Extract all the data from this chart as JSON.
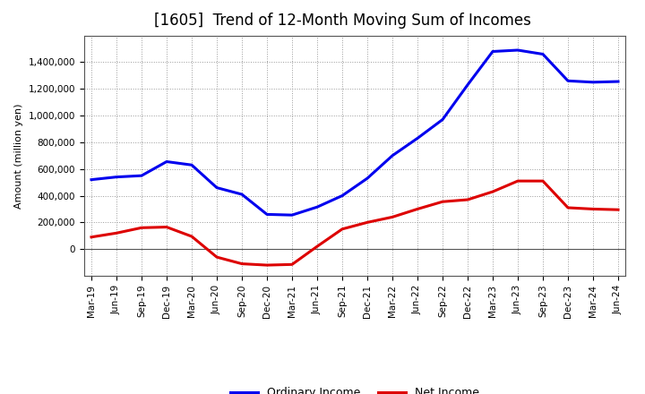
{
  "title": "[1605]  Trend of 12-Month Moving Sum of Incomes",
  "ylabel": "Amount (million yen)",
  "xlabels": [
    "Mar-19",
    "Jun-19",
    "Sep-19",
    "Dec-19",
    "Mar-20",
    "Jun-20",
    "Sep-20",
    "Dec-20",
    "Mar-21",
    "Jun-21",
    "Sep-21",
    "Dec-21",
    "Mar-22",
    "Jun-22",
    "Sep-22",
    "Dec-22",
    "Mar-23",
    "Jun-23",
    "Sep-23",
    "Dec-23",
    "Mar-24",
    "Jun-24"
  ],
  "ordinary_income": [
    520000,
    540000,
    550000,
    655000,
    630000,
    460000,
    410000,
    260000,
    255000,
    315000,
    400000,
    530000,
    700000,
    830000,
    970000,
    1230000,
    1480000,
    1490000,
    1460000,
    1260000,
    1250000,
    1255000
  ],
  "net_income": [
    90000,
    120000,
    160000,
    165000,
    95000,
    -60000,
    -110000,
    -120000,
    -115000,
    20000,
    150000,
    200000,
    240000,
    300000,
    355000,
    370000,
    430000,
    510000,
    510000,
    310000,
    300000,
    295000
  ],
  "ordinary_color": "#0000ee",
  "net_color": "#dd0000",
  "ylim_min": -200000,
  "ylim_max": 1600000,
  "yticks": [
    0,
    200000,
    400000,
    600000,
    800000,
    1000000,
    1200000,
    1400000
  ],
  "background_color": "#ffffff",
  "plot_bg_color": "#ffffff",
  "grid_color": "#999999",
  "line_width": 2.2,
  "title_fontsize": 12,
  "legend_fontsize": 9,
  "axis_label_fontsize": 8,
  "tick_fontsize": 7.5
}
